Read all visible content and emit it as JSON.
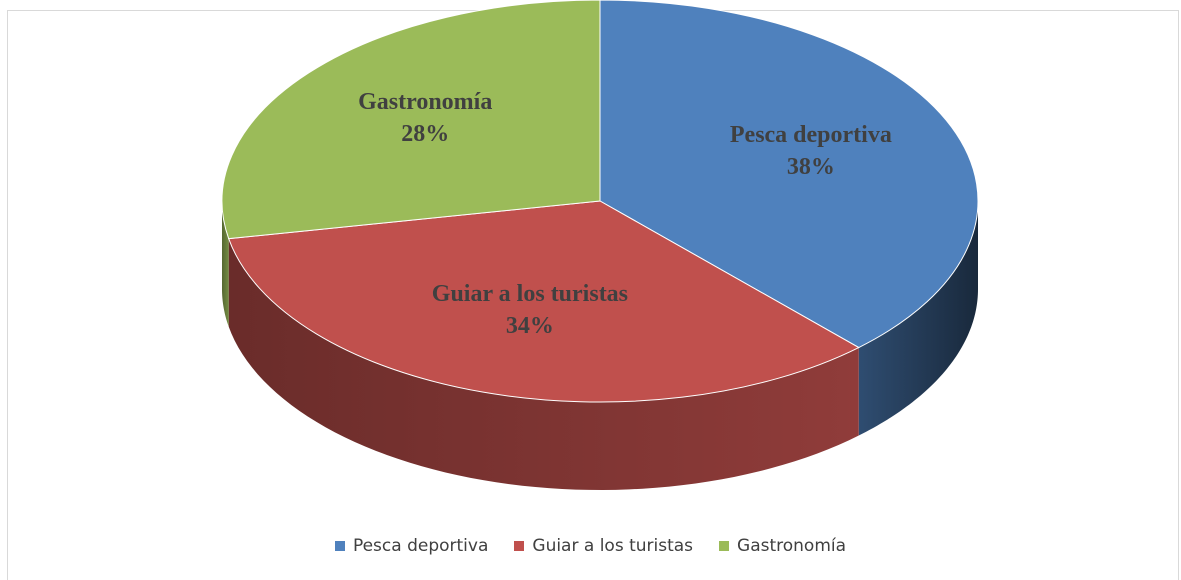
{
  "chart_data": {
    "type": "pie",
    "categories": [
      "Pesca deportiva",
      "Guiar a los turistas",
      "Gastronomía"
    ],
    "values": [
      38,
      34,
      28
    ],
    "value_labels": [
      "38%",
      "34%",
      "28%"
    ],
    "colors": [
      "#4f81bd",
      "#c0504d",
      "#9bbb59"
    ],
    "legend": "bottom"
  }
}
